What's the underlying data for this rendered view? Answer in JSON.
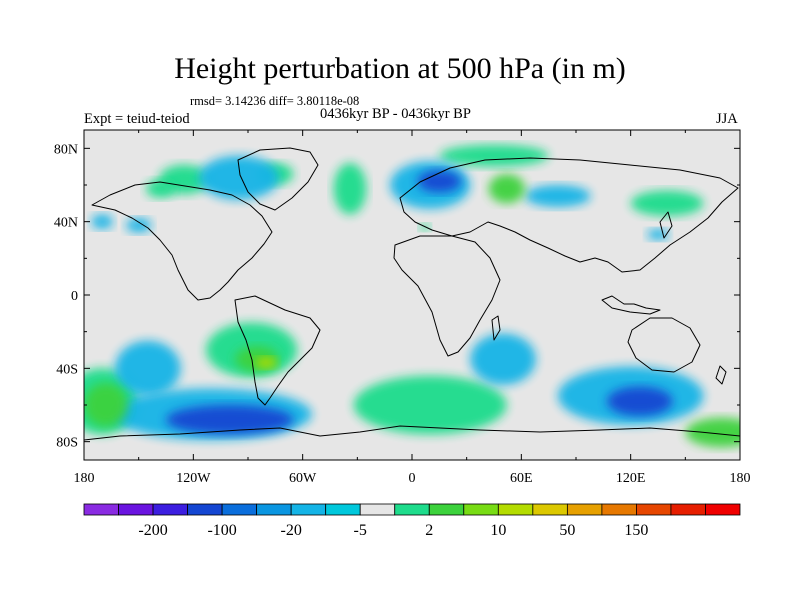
{
  "title": "Height perturbation at 500 hPa (in m)",
  "stats": "rmsd= 3.14236 diff= 3.80118e-08",
  "subtitle": "0436kyr BP - 0436kyr BP",
  "left_label": "Expt = teiud-teiod",
  "right_label": "JJA",
  "chart_data": {
    "type": "heatmap",
    "projection": "cylindrical-equidistant",
    "variable": "Height perturbation at 500 hPa",
    "units": "m",
    "season": "JJA",
    "lon_range": [
      -180,
      180
    ],
    "lat_range": [
      -90,
      90
    ],
    "x_ticks": [
      {
        "value": -180,
        "label": "180"
      },
      {
        "value": -120,
        "label": "120W"
      },
      {
        "value": -60,
        "label": "60W"
      },
      {
        "value": 0,
        "label": "0"
      },
      {
        "value": 60,
        "label": "60E"
      },
      {
        "value": 120,
        "label": "120E"
      },
      {
        "value": 180,
        "label": "180"
      }
    ],
    "y_ticks": [
      {
        "value": 80,
        "label": "80N"
      },
      {
        "value": 40,
        "label": "40N"
      },
      {
        "value": 0,
        "label": "0"
      },
      {
        "value": -40,
        "label": "40S"
      },
      {
        "value": -80,
        "label": "80S"
      }
    ],
    "contour_levels": [
      "-200",
      "-100",
      "-20",
      "-5",
      "2",
      "10",
      "50",
      "150"
    ],
    "colorbar_colors": [
      "#8a2be2",
      "#6a14e0",
      "#3c1ee0",
      "#1446d2",
      "#0a6edc",
      "#0a96e1",
      "#14b4e6",
      "#00c8dc",
      "#e6e6e6",
      "#1edc8c",
      "#3cd23c",
      "#78dc14",
      "#b4dc00",
      "#dcc800",
      "#e6a000",
      "#e67800",
      "#e64600",
      "#e61e00",
      "#f00000"
    ],
    "neutral_color": "#e6e6e6",
    "anomalies": [
      {
        "lon": -125,
        "lat": 63,
        "rx": 14,
        "ry": 8,
        "level": "2"
      },
      {
        "lon": -138,
        "lat": 58,
        "rx": 8,
        "ry": 5,
        "level": "2"
      },
      {
        "lon": -95,
        "lat": 64,
        "rx": 22,
        "ry": 12,
        "level": "-5"
      },
      {
        "lon": -75,
        "lat": 66,
        "rx": 10,
        "ry": 6,
        "level": "2"
      },
      {
        "lon": -170,
        "lat": 40,
        "rx": 6,
        "ry": 4,
        "level": "-5"
      },
      {
        "lon": -150,
        "lat": 38,
        "rx": 7,
        "ry": 4,
        "level": "-5"
      },
      {
        "lon": -34,
        "lat": 58,
        "rx": 9,
        "ry": 14,
        "level": "2"
      },
      {
        "lon": 10,
        "lat": 60,
        "rx": 22,
        "ry": 13,
        "level": "-5"
      },
      {
        "lon": 15,
        "lat": 62,
        "rx": 12,
        "ry": 6,
        "level": "-20"
      },
      {
        "lon": 45,
        "lat": 76,
        "rx": 30,
        "ry": 6,
        "level": "2"
      },
      {
        "lon": 52,
        "lat": 58,
        "rx": 10,
        "ry": 8,
        "level": "10"
      },
      {
        "lon": 80,
        "lat": 54,
        "rx": 18,
        "ry": 6,
        "level": "-5"
      },
      {
        "lon": 140,
        "lat": 50,
        "rx": 20,
        "ry": 7,
        "level": "2"
      },
      {
        "lon": 135,
        "lat": 33,
        "rx": 6,
        "ry": 3,
        "level": "-5"
      },
      {
        "lon": 7,
        "lat": 37,
        "rx": 3,
        "ry": 2,
        "level": "2"
      },
      {
        "lon": -88,
        "lat": -30,
        "rx": 25,
        "ry": 15,
        "level": "2"
      },
      {
        "lon": -85,
        "lat": -35,
        "rx": 12,
        "ry": 7,
        "level": "10"
      },
      {
        "lon": -80,
        "lat": -37,
        "rx": 6,
        "ry": 3,
        "level": "50"
      },
      {
        "lon": -145,
        "lat": -40,
        "rx": 18,
        "ry": 15,
        "level": "-5"
      },
      {
        "lon": -170,
        "lat": -58,
        "rx": 20,
        "ry": 18,
        "level": "2"
      },
      {
        "lon": -168,
        "lat": -60,
        "rx": 12,
        "ry": 12,
        "level": "10"
      },
      {
        "lon": -110,
        "lat": -65,
        "rx": 55,
        "ry": 14,
        "level": "-5"
      },
      {
        "lon": -100,
        "lat": -68,
        "rx": 35,
        "ry": 8,
        "level": "-20"
      },
      {
        "lon": 10,
        "lat": -60,
        "rx": 42,
        "ry": 16,
        "level": "2"
      },
      {
        "lon": 50,
        "lat": -35,
        "rx": 18,
        "ry": 14,
        "level": "-5"
      },
      {
        "lon": 120,
        "lat": -55,
        "rx": 40,
        "ry": 16,
        "level": "-5"
      },
      {
        "lon": 125,
        "lat": -58,
        "rx": 18,
        "ry": 8,
        "level": "-20"
      },
      {
        "lon": 170,
        "lat": -75,
        "rx": 20,
        "ry": 8,
        "level": "10"
      }
    ]
  }
}
